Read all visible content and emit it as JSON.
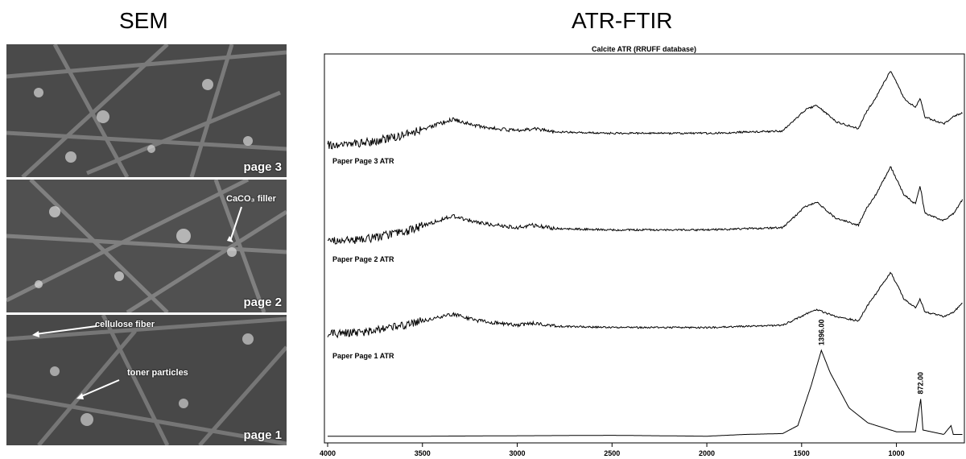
{
  "headings": {
    "sem": "SEM",
    "ftir": "ATR-FTIR"
  },
  "sem": {
    "panels": [
      {
        "page_label": "page 3"
      },
      {
        "page_label": "page 2",
        "annotation": "CaCO₃ filler"
      },
      {
        "page_label": "page 1",
        "annotations": [
          "cellulose fiber",
          "toner particles"
        ]
      }
    ]
  },
  "chart_data": {
    "type": "line",
    "title": "Calcite ATR (RRUFF database)",
    "xlabel": "",
    "ylabel": "",
    "xlim": [
      4000,
      650
    ],
    "x_ticks": [
      4000,
      3500,
      3000,
      2500,
      2000,
      1500,
      1000
    ],
    "series": [
      {
        "name": "Calcite ATR (RRUFF database)",
        "points": [
          [
            4000,
            0.03
          ],
          [
            3500,
            0.03
          ],
          [
            2500,
            0.04
          ],
          [
            2000,
            0.03
          ],
          [
            1800,
            0.05
          ],
          [
            1600,
            0.06
          ],
          [
            1520,
            0.15
          ],
          [
            1450,
            0.6
          ],
          [
            1396,
            1.0
          ],
          [
            1350,
            0.75
          ],
          [
            1250,
            0.35
          ],
          [
            1150,
            0.18
          ],
          [
            1000,
            0.08
          ],
          [
            900,
            0.08
          ],
          [
            872,
            0.45
          ],
          [
            860,
            0.1
          ],
          [
            750,
            0.05
          ],
          [
            712,
            0.15
          ],
          [
            700,
            0.05
          ]
        ]
      },
      {
        "name": "Paper Page 3 ATR",
        "points": [
          [
            4000,
            0.0
          ],
          [
            3800,
            0.05
          ],
          [
            3600,
            0.2
          ],
          [
            3450,
            0.4
          ],
          [
            3340,
            0.55
          ],
          [
            3200,
            0.4
          ],
          [
            3000,
            0.3
          ],
          [
            2920,
            0.35
          ],
          [
            2800,
            0.28
          ],
          [
            2500,
            0.25
          ],
          [
            2000,
            0.25
          ],
          [
            1600,
            0.3
          ],
          [
            1480,
            0.75
          ],
          [
            1420,
            0.85
          ],
          [
            1320,
            0.5
          ],
          [
            1200,
            0.35
          ],
          [
            1160,
            0.7
          ],
          [
            1110,
            1.0
          ],
          [
            1030,
            1.6
          ],
          [
            960,
            1.0
          ],
          [
            900,
            0.8
          ],
          [
            875,
            1.0
          ],
          [
            850,
            0.6
          ],
          [
            750,
            0.45
          ],
          [
            700,
            0.6
          ],
          [
            650,
            0.7
          ]
        ]
      },
      {
        "name": "Paper Page 2 ATR",
        "points": [
          [
            4000,
            0.0
          ],
          [
            3800,
            0.05
          ],
          [
            3600,
            0.2
          ],
          [
            3450,
            0.4
          ],
          [
            3340,
            0.55
          ],
          [
            3200,
            0.4
          ],
          [
            3000,
            0.3
          ],
          [
            2920,
            0.35
          ],
          [
            2800,
            0.28
          ],
          [
            2500,
            0.25
          ],
          [
            2000,
            0.25
          ],
          [
            1600,
            0.3
          ],
          [
            1480,
            0.75
          ],
          [
            1420,
            0.85
          ],
          [
            1320,
            0.5
          ],
          [
            1200,
            0.35
          ],
          [
            1160,
            0.7
          ],
          [
            1110,
            1.0
          ],
          [
            1030,
            1.6
          ],
          [
            960,
            1.0
          ],
          [
            900,
            0.8
          ],
          [
            875,
            1.2
          ],
          [
            850,
            0.6
          ],
          [
            750,
            0.45
          ],
          [
            700,
            0.6
          ],
          [
            650,
            0.9
          ]
        ]
      },
      {
        "name": "Paper Page 1 ATR",
        "points": [
          [
            4000,
            0.0
          ],
          [
            3800,
            0.05
          ],
          [
            3600,
            0.2
          ],
          [
            3450,
            0.35
          ],
          [
            3340,
            0.45
          ],
          [
            3200,
            0.3
          ],
          [
            3000,
            0.2
          ],
          [
            2920,
            0.25
          ],
          [
            2800,
            0.18
          ],
          [
            2500,
            0.15
          ],
          [
            2000,
            0.15
          ],
          [
            1600,
            0.2
          ],
          [
            1480,
            0.45
          ],
          [
            1420,
            0.55
          ],
          [
            1320,
            0.4
          ],
          [
            1200,
            0.3
          ],
          [
            1160,
            0.6
          ],
          [
            1110,
            0.9
          ],
          [
            1030,
            1.4
          ],
          [
            960,
            0.8
          ],
          [
            900,
            0.6
          ],
          [
            875,
            0.8
          ],
          [
            850,
            0.5
          ],
          [
            750,
            0.4
          ],
          [
            700,
            0.5
          ],
          [
            650,
            0.7
          ]
        ]
      }
    ],
    "annotations": [
      {
        "x": 1396,
        "text": "1396.00"
      },
      {
        "x": 872,
        "text": "872.00"
      }
    ]
  }
}
